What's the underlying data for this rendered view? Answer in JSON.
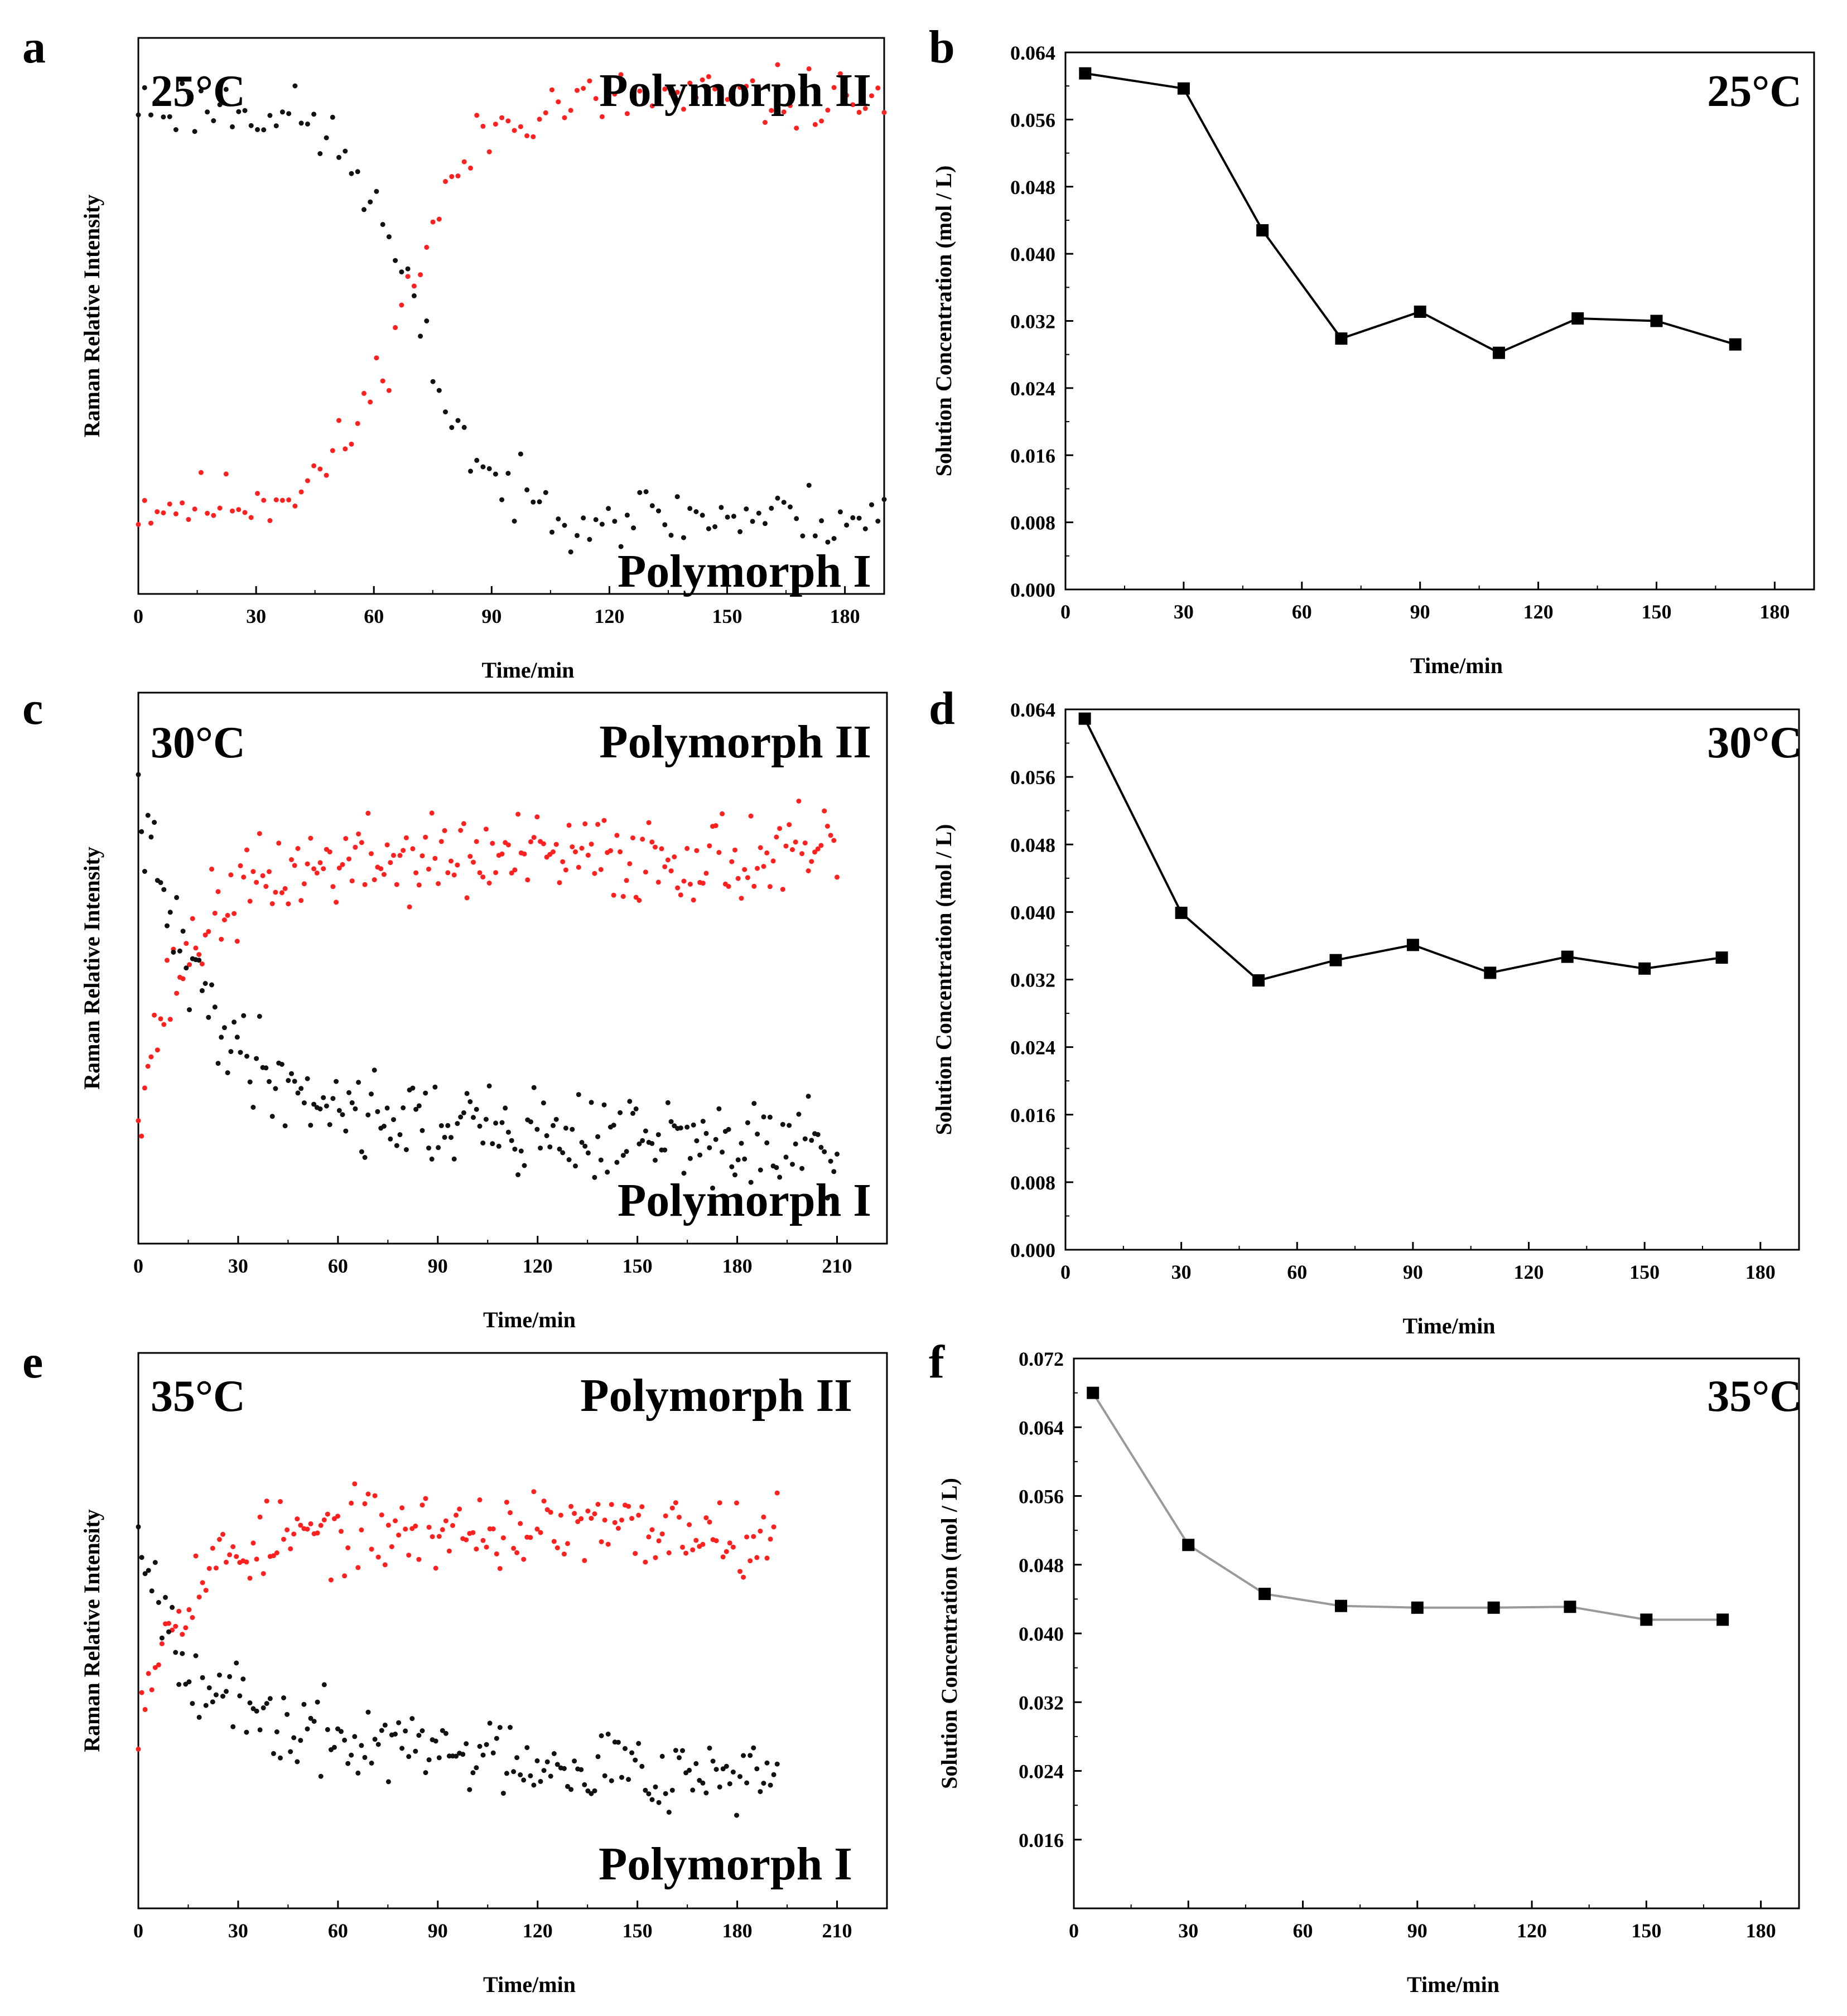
{
  "figure": {
    "background": "#ffffff",
    "axis_color": "#000000"
  },
  "colors": {
    "polymorph_II": "#ff2020",
    "polymorph_I": "#111111",
    "line_b": "#000000",
    "line_d": "#000000",
    "line_f": "#999999",
    "marker": "#000000"
  },
  "chart_data": [
    {
      "id": "a",
      "panel_label": "a",
      "type": "scatter",
      "temperature_label": "25°C",
      "xlabel": "Time/min",
      "ylabel": "Raman Relative Intensity",
      "xlim": [
        0,
        190
      ],
      "ylim": [
        0,
        1
      ],
      "y_ticks_visible": false,
      "x_ticks": [
        0,
        30,
        60,
        90,
        120,
        150,
        180
      ],
      "annotations": [
        {
          "text": "Polymorph II",
          "position": "top-right"
        },
        {
          "text": "Polymorph I",
          "position": "bottom-right"
        }
      ],
      "series": [
        {
          "name": "Polymorph II",
          "color": "#ff2020",
          "shape": "logistic",
          "t_start": 0,
          "t_end": 190,
          "n_points": 120,
          "y_start": 0.16,
          "y_end": 0.89,
          "t_mid": 68,
          "width": 9,
          "noise": 0.028,
          "seed": 11
        },
        {
          "name": "Polymorph I",
          "color": "#111111",
          "shape": "logistic",
          "t_start": 0,
          "t_end": 190,
          "n_points": 120,
          "y_start": 0.88,
          "y_end": 0.14,
          "t_mid": 70,
          "width": 9,
          "noise": 0.028,
          "seed": 23
        }
      ]
    },
    {
      "id": "b",
      "panel_label": "b",
      "type": "line",
      "temperature_label": "25°C",
      "xlabel": "Time/min",
      "ylabel": "Solution Concentration (mol / L)",
      "xlim": [
        0,
        190
      ],
      "ylim": [
        0,
        0.064
      ],
      "x_ticks": [
        0,
        30,
        60,
        90,
        120,
        150,
        180
      ],
      "y_ticks": [
        "0.000",
        "0.008",
        "0.016",
        "0.024",
        "0.032",
        "0.040",
        "0.048",
        "0.056",
        "0.064"
      ],
      "series": [
        {
          "name": "Concentration",
          "color": "#000000",
          "x": [
            5,
            30,
            50,
            70,
            90,
            110,
            130,
            150,
            170
          ],
          "y": [
            0.0615,
            0.0597,
            0.0428,
            0.0299,
            0.0331,
            0.0282,
            0.0323,
            0.032,
            0.0292
          ]
        }
      ]
    },
    {
      "id": "c",
      "panel_label": "c",
      "type": "scatter",
      "temperature_label": "30°C",
      "xlabel": "Time/min",
      "ylabel": "Raman Relative Intensity",
      "xlim": [
        0,
        225
      ],
      "ylim": [
        0,
        1
      ],
      "y_ticks_visible": false,
      "x_ticks": [
        0,
        30,
        60,
        90,
        120,
        150,
        180,
        210
      ],
      "annotations": [
        {
          "text": "Polymorph II",
          "position": "top-right"
        },
        {
          "text": "Polymorph I",
          "position": "bottom-right"
        }
      ],
      "series": [
        {
          "name": "Polymorph II",
          "color": "#ff2020",
          "shape": "rise",
          "t_start": 0,
          "t_end": 210,
          "n_points": 220,
          "y_start": 0.26,
          "y_end": 0.7,
          "tau": 16,
          "noise": 0.04,
          "seed": 37
        },
        {
          "name": "Polymorph I",
          "color": "#111111",
          "shape": "decay",
          "t_start": 0,
          "t_end": 210,
          "n_points": 220,
          "y_start": 0.8,
          "y_end": 0.25,
          "tau": 20,
          "drift": -0.0004,
          "noise": 0.04,
          "seed": 41
        }
      ]
    },
    {
      "id": "d",
      "panel_label": "d",
      "type": "line",
      "temperature_label": "30°C",
      "xlabel": "Time/min",
      "ylabel": "Solution Concentration (mol / L)",
      "xlim": [
        0,
        190
      ],
      "ylim": [
        0,
        0.064
      ],
      "x_ticks": [
        0,
        30,
        60,
        90,
        120,
        150,
        180
      ],
      "y_ticks": [
        "0.000",
        "0.008",
        "0.016",
        "0.024",
        "0.032",
        "0.040",
        "0.048",
        "0.056",
        "0.064"
      ],
      "series": [
        {
          "name": "Concentration",
          "color": "#000000",
          "x": [
            5,
            30,
            50,
            70,
            90,
            110,
            130,
            150,
            170
          ],
          "y": [
            0.0629,
            0.0399,
            0.0319,
            0.0343,
            0.0361,
            0.0328,
            0.0347,
            0.0333,
            0.0346
          ]
        }
      ]
    },
    {
      "id": "e",
      "panel_label": "e",
      "type": "scatter",
      "temperature_label": "35°C",
      "xlabel": "Time/min",
      "ylabel": "Raman Relative Intensity",
      "xlim": [
        0,
        225
      ],
      "ylim": [
        0,
        1
      ],
      "y_ticks_visible": false,
      "x_ticks": [
        0,
        30,
        60,
        90,
        120,
        150,
        180,
        210
      ],
      "annotations": [
        {
          "text": "Polymorph II",
          "position": "top-right"
        },
        {
          "text": "Polymorph I",
          "position": "bottom-right"
        }
      ],
      "series": [
        {
          "name": "Polymorph II",
          "color": "#ff2020",
          "shape": "rise",
          "t_start": 0,
          "t_end": 192,
          "n_points": 190,
          "y_start": 0.36,
          "y_end": 0.68,
          "tau": 14,
          "noise": 0.035,
          "seed": 53
        },
        {
          "name": "Polymorph I",
          "color": "#111111",
          "shape": "decay",
          "t_start": 0,
          "t_end": 192,
          "n_points": 190,
          "y_start": 0.7,
          "y_end": 0.33,
          "tau": 14,
          "drift": -0.0005,
          "noise": 0.035,
          "seed": 67
        }
      ]
    },
    {
      "id": "f",
      "panel_label": "f",
      "type": "line",
      "temperature_label": "35°C",
      "xlabel": "Time/min",
      "ylabel": "Solution Concentration (mol / L)",
      "xlim": [
        0,
        190
      ],
      "ylim": [
        0.008,
        0.072
      ],
      "x_ticks": [
        0,
        30,
        60,
        90,
        120,
        150,
        180
      ],
      "y_ticks": [
        "0.016",
        "0.024",
        "0.032",
        "0.040",
        "0.048",
        "0.056",
        "0.064",
        "0.072"
      ],
      "series": [
        {
          "name": "Concentration",
          "color": "#999999",
          "x": [
            5,
            30,
            50,
            70,
            90,
            110,
            130,
            150,
            170
          ],
          "y": [
            0.068,
            0.0503,
            0.0446,
            0.0432,
            0.043,
            0.043,
            0.0431,
            0.0416,
            0.0416
          ]
        }
      ]
    }
  ]
}
